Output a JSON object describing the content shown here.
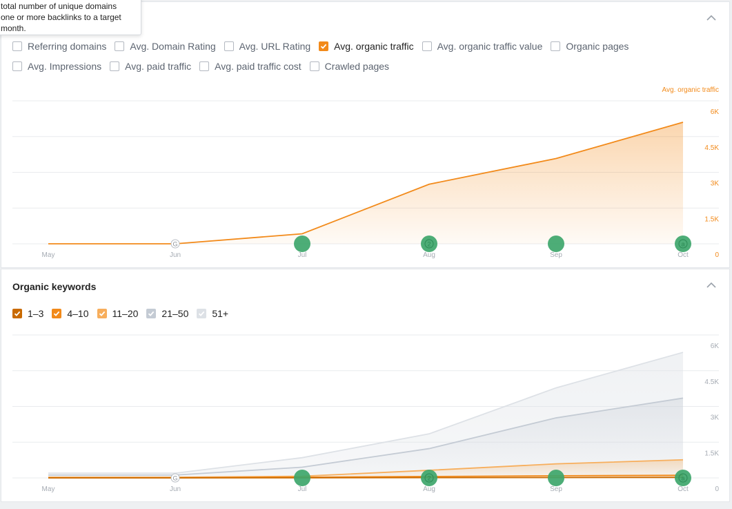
{
  "tooltip": {
    "lines": [
      "total number of unique domains",
      "one or more backlinks to a target",
      "month."
    ]
  },
  "panel1": {
    "metrics_row1": [
      {
        "label": "Referring domains",
        "checked": false
      },
      {
        "label": "Avg. Domain Rating",
        "checked": false
      },
      {
        "label": "Avg. URL Rating",
        "checked": false
      },
      {
        "label": "Avg. organic traffic",
        "checked": true
      },
      {
        "label": "Avg. organic traffic value",
        "checked": false
      },
      {
        "label": "Organic pages",
        "checked": false
      }
    ],
    "metrics_row2": [
      {
        "label": "Avg. Impressions",
        "checked": false
      },
      {
        "label": "Avg. paid traffic",
        "checked": false
      },
      {
        "label": "Avg. paid traffic cost",
        "checked": false
      },
      {
        "label": "Crawled pages",
        "checked": false
      }
    ]
  },
  "panel2": {
    "title": "Organic keywords",
    "legend": [
      {
        "label": "1–3",
        "color": "#c96a00"
      },
      {
        "label": "4–10",
        "color": "#f28a1a"
      },
      {
        "label": "11–20",
        "color": "#f7ae5c"
      },
      {
        "label": "21–50",
        "color": "#c4cbd4"
      },
      {
        "label": "51+",
        "color": "#dde1e6"
      }
    ]
  },
  "chart_data": [
    {
      "type": "area",
      "title": "",
      "xlabel": "",
      "ylabel": "Avg. organic traffic",
      "categories": [
        "May",
        "Jun",
        "Jul",
        "Aug",
        "Sep",
        "Oct"
      ],
      "yticks": [
        "6K",
        "4.5K",
        "3K",
        "1.5K",
        "0"
      ],
      "ylim": [
        0,
        6000
      ],
      "grid": true,
      "series": [
        {
          "name": "Avg. organic traffic",
          "color": "#f28a1a",
          "values": [
            0,
            0,
            420,
            2500,
            3580,
            5100
          ]
        }
      ],
      "annotations": [
        {
          "x": "Jun",
          "label": "G",
          "kind": "google-update"
        },
        {
          "x": "Jul",
          "label": "",
          "kind": "event"
        },
        {
          "x": "Aug",
          "label": "2",
          "kind": "event"
        },
        {
          "x": "Sep",
          "label": "",
          "kind": "event"
        },
        {
          "x": "Oct",
          "label": "a",
          "kind": "event"
        }
      ]
    },
    {
      "type": "area",
      "title": "",
      "xlabel": "",
      "ylabel": "",
      "categories": [
        "May",
        "Jun",
        "Jul",
        "Aug",
        "Sep",
        "Oct"
      ],
      "yticks": [
        "6K",
        "4.5K",
        "3K",
        "1.5K",
        "0"
      ],
      "ylim": [
        0,
        6000
      ],
      "grid": true,
      "series": [
        {
          "name": "51+",
          "color": "#dde1e6",
          "values": [
            200,
            200,
            850,
            1850,
            3780,
            5270
          ]
        },
        {
          "name": "21–50",
          "color": "#c4cbd4",
          "values": [
            120,
            120,
            450,
            1230,
            2520,
            3350
          ]
        },
        {
          "name": "11–20",
          "color": "#f7ae5c",
          "values": [
            30,
            30,
            70,
            320,
            590,
            760
          ]
        },
        {
          "name": "4–10",
          "color": "#f28a1a",
          "values": [
            10,
            10,
            30,
            60,
            90,
            110
          ]
        },
        {
          "name": "1–3",
          "color": "#c96a00",
          "values": [
            0,
            0,
            5,
            10,
            15,
            20
          ]
        }
      ],
      "annotations": [
        {
          "x": "Jun",
          "label": "G",
          "kind": "google-update"
        },
        {
          "x": "Jul",
          "label": "",
          "kind": "event"
        },
        {
          "x": "Aug",
          "label": "2",
          "kind": "event"
        },
        {
          "x": "Sep",
          "label": "",
          "kind": "event"
        },
        {
          "x": "Oct",
          "label": "a",
          "kind": "event"
        }
      ]
    }
  ]
}
